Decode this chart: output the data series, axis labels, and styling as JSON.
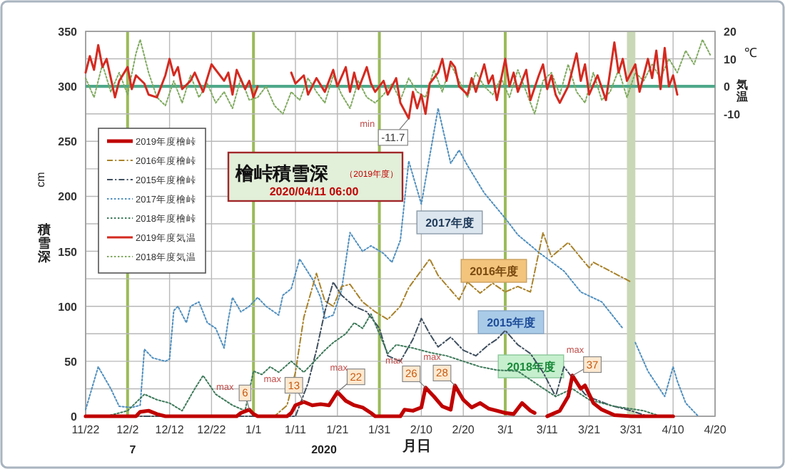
{
  "chart_data": {
    "type": "line",
    "title": "檜峠積雪深",
    "subtitle": "（2019年度）",
    "xlabel": "月日",
    "ylabel": "積雪深",
    "y2label": "気温",
    "xlim": [
      "2019-11-22",
      "2020-04-20"
    ],
    "xticks": [
      {
        "value": "2019-11-22",
        "label": "11/22"
      },
      {
        "value": "2019-12-02",
        "label": "12/2"
      },
      {
        "value": "2019-12-12",
        "label": "12/12"
      },
      {
        "value": "2019-12-22",
        "label": "12/22"
      },
      {
        "value": "2020-01-01",
        "label": "1/1"
      },
      {
        "value": "2020-01-11",
        "label": "1/11"
      },
      {
        "value": "2020-01-21",
        "label": "1/21"
      },
      {
        "value": "2020-01-31",
        "label": "1/31"
      },
      {
        "value": "2020-02-10",
        "label": "2/10"
      },
      {
        "value": "2020-02-20",
        "label": "2/20"
      },
      {
        "value": "2020-03-01",
        "label": "3/1"
      },
      {
        "value": "2020-03-11",
        "label": "3/11"
      },
      {
        "value": "2020-03-21",
        "label": "3/21"
      },
      {
        "value": "2020-03-31",
        "label": "3/31"
      },
      {
        "value": "2020-04-10",
        "label": "4/10"
      },
      {
        "value": "2020-04-20",
        "label": "4/20"
      }
    ],
    "ylim": [
      0,
      350
    ],
    "yticks": [
      0,
      {
        "value": 25,
        "label": null
      },
      50,
      {
        "value": 75,
        "label": null
      },
      100,
      {
        "value": 125,
        "label": null
      },
      150,
      {
        "value": 175,
        "label": null
      },
      200,
      {
        "value": 225,
        "label": null
      },
      250,
      {
        "value": 275,
        "label": null
      },
      300,
      {
        "value": 325,
        "label": null
      },
      350
    ],
    "y2lim": [
      -120,
      20
    ],
    "y2ticks": [
      -10,
      0,
      10,
      20
    ],
    "grid": true,
    "legend": "top left",
    "ref_lines": [
      {
        "axis": "y2",
        "value": 0,
        "color": "#4fa88a"
      }
    ],
    "bands": [
      {
        "axis": "x",
        "from": "2020-03-30",
        "to": "2020-04-01",
        "color": "#c9d8b6"
      }
    ],
    "series": [
      {
        "name": "2019年度檜峠",
        "color": "#c00000",
        "line_style": "solid",
        "x": [
          "2019-11-22",
          "2019-12-04",
          "2019-12-05",
          "2019-12-07",
          "2019-12-09",
          "2019-12-11",
          "2019-12-28",
          "2019-12-29",
          "2019-12-31",
          "2020-01-01",
          "2020-01-02",
          "2020-01-09",
          "2020-01-10",
          "2020-01-11",
          "2020-01-13",
          "2020-01-15",
          "2020-01-17",
          "2020-01-19",
          "2020-01-21",
          "2020-01-23",
          "2020-01-25",
          "2020-01-27",
          "2020-01-29",
          "2020-01-30",
          "2020-02-05",
          "2020-02-06",
          "2020-02-08",
          "2020-02-10",
          "2020-02-11",
          "2020-02-13",
          "2020-02-15",
          "2020-02-17",
          "2020-02-18",
          "2020-02-20",
          "2020-02-22",
          "2020-02-24",
          "2020-02-26",
          "2020-02-28",
          "2020-03-01",
          "2020-03-03",
          "2020-03-05",
          "2020-03-07",
          "2020-03-08",
          "2020-03-09",
          "2020-03-11",
          "2020-03-14",
          "2020-03-16",
          "2020-03-17",
          "2020-03-19",
          "2020-03-20",
          "2020-03-22",
          "2020-03-24",
          "2020-03-27",
          "2020-03-31",
          "2020-04-10"
        ],
        "values": [
          0,
          0,
          4,
          5,
          2,
          0,
          0,
          3,
          6,
          2,
          0,
          0,
          3,
          10,
          13,
          10,
          11,
          10,
          22,
          14,
          10,
          8,
          3,
          0,
          0,
          6,
          5,
          8,
          26,
          18,
          9,
          6,
          28,
          15,
          8,
          12,
          7,
          5,
          3,
          2,
          12,
          5,
          3,
          null,
          0,
          5,
          18,
          37,
          25,
          28,
          12,
          6,
          1,
          0,
          0
        ],
        "value_labels": [
          null,
          null,
          null,
          null,
          null,
          null,
          null,
          null,
          "6",
          null,
          null,
          null,
          null,
          null,
          "13",
          null,
          null,
          null,
          "22",
          null,
          null,
          null,
          null,
          null,
          null,
          null,
          null,
          null,
          "26",
          null,
          null,
          null,
          "28",
          null,
          null,
          null,
          null,
          null,
          null,
          null,
          null,
          null,
          null,
          null,
          null,
          null,
          null,
          "37",
          null,
          null,
          null,
          null,
          null,
          null,
          null
        ]
      },
      {
        "name": "2016年度檜峠",
        "color": "#a9822a",
        "line_style": "dashed",
        "x": [
          "2019-11-22",
          "2020-01-06",
          "2020-01-09",
          "2020-01-11",
          "2020-01-13",
          "2020-01-16",
          "2020-01-18",
          "2020-01-20",
          "2020-01-22",
          "2020-01-24",
          "2020-01-27",
          "2020-01-30",
          "2020-02-02",
          "2020-02-05",
          "2020-02-07",
          "2020-02-12",
          "2020-02-14",
          "2020-02-19",
          "2020-02-21",
          "2020-02-24",
          "2020-02-27",
          "2020-03-01",
          "2020-03-04",
          "2020-03-07",
          "2020-03-10",
          "2020-03-12",
          "2020-03-16",
          "2020-03-21",
          "2020-03-22",
          "2020-03-27",
          "2020-03-31"
        ],
        "values": [
          0,
          0,
          10,
          40,
          90,
          130,
          105,
          100,
          118,
          120,
          104,
          95,
          88,
          100,
          117,
          143,
          128,
          106,
          122,
          112,
          121,
          113,
          118,
          113,
          167,
          145,
          158,
          135,
          140,
          130,
          122
        ]
      },
      {
        "name": "2015年度檜峠",
        "color": "#3f4f5f",
        "line_style": "dashed",
        "x": [
          "2019-11-22",
          "2020-01-11",
          "2020-01-14",
          "2020-01-16",
          "2020-01-18",
          "2020-01-20",
          "2020-01-22",
          "2020-01-25",
          "2020-01-28",
          "2020-01-31",
          "2020-02-02",
          "2020-02-05",
          "2020-02-08",
          "2020-02-10",
          "2020-02-12",
          "2020-02-14",
          "2020-02-17",
          "2020-02-20",
          "2020-02-23",
          "2020-02-26",
          "2020-02-28",
          "2020-03-01",
          "2020-03-04",
          "2020-03-07",
          "2020-03-10",
          "2020-03-13",
          "2020-03-15",
          "2020-03-17",
          "2020-03-20",
          "2020-03-22",
          "2020-03-26",
          "2020-03-31",
          "2020-04-04"
        ],
        "values": [
          0,
          0,
          30,
          60,
          95,
          122,
          110,
          100,
          95,
          80,
          55,
          50,
          70,
          89,
          75,
          63,
          72,
          60,
          55,
          65,
          70,
          78,
          65,
          57,
          40,
          18,
          45,
          35,
          20,
          16,
          10,
          5,
          0
        ]
      },
      {
        "name": "2017年度檜峠",
        "color": "#4f8fbf",
        "line_style": "dotted",
        "x": [
          "2019-11-22",
          "2019-11-25",
          "2019-11-28",
          "2019-11-30",
          "2019-12-03",
          "2019-12-05",
          "2019-12-06",
          "2019-12-08",
          "2019-12-11",
          "2019-12-12",
          "2019-12-13",
          "2019-12-14",
          "2019-12-16",
          "2019-12-17",
          "2019-12-19",
          "2019-12-21",
          "2019-12-23",
          "2019-12-25",
          "2019-12-26",
          "2019-12-27",
          "2019-12-29",
          "2019-12-31",
          "2020-01-02",
          "2020-01-04",
          "2020-01-07",
          "2020-01-08",
          "2020-01-10",
          "2020-01-12",
          "2020-01-15",
          "2020-01-17",
          "2020-01-18",
          "2020-01-20",
          "2020-01-22",
          "2020-01-24",
          "2020-01-27",
          "2020-01-29",
          "2020-02-01",
          "2020-02-03",
          "2020-02-05",
          "2020-02-07",
          "2020-02-10",
          "2020-02-14",
          "2020-02-17",
          "2020-02-19",
          "2020-02-21",
          "2020-02-25",
          "2020-03-01",
          "2020-03-04",
          "2020-03-09",
          "2020-03-15",
          "2020-03-19",
          "2020-03-24",
          "2020-03-29",
          "2020-03-30",
          "2020-04-01",
          "2020-04-04",
          "2020-04-08",
          "2020-04-10",
          "2020-04-11",
          "2020-04-13",
          "2020-04-16"
        ],
        "values": [
          6,
          45,
          25,
          9,
          8,
          10,
          61,
          53,
          50,
          52,
          96,
          100,
          85,
          100,
          104,
          85,
          80,
          62,
          88,
          108,
          95,
          100,
          108,
          100,
          92,
          110,
          116,
          143,
          125,
          108,
          89,
          92,
          115,
          167,
          150,
          155,
          148,
          140,
          160,
          232,
          193,
          280,
          230,
          242,
          228,
          203,
          180,
          165,
          149,
          132,
          113,
          104,
          80,
          null,
          67,
          41,
          18,
          45,
          32,
          12,
          0
        ]
      },
      {
        "name": "2018年度檜峠",
        "color": "#3d7a5a",
        "line_style": "dotted",
        "x": [
          "2019-11-22",
          "2019-11-27",
          "2019-12-02",
          "2019-12-06",
          "2019-12-09",
          "2019-12-12",
          "2019-12-15",
          "2019-12-18",
          "2019-12-20",
          "2019-12-23",
          "2019-12-27",
          "2019-12-30",
          "2020-01-01",
          "2020-01-03",
          "2020-01-05",
          "2020-01-07",
          "2020-01-10",
          "2020-01-13",
          "2020-01-16",
          "2020-01-18",
          "2020-01-20",
          "2020-01-23",
          "2020-01-25",
          "2020-01-27",
          "2020-01-29",
          "2020-01-31",
          "2020-02-02",
          "2020-02-04",
          "2020-02-08",
          "2020-02-12",
          "2020-02-16",
          "2020-02-20",
          "2020-02-24",
          "2020-02-28",
          "2020-03-04",
          "2020-03-09",
          "2020-03-13",
          "2020-03-17",
          "2020-03-21",
          "2020-03-27",
          "2020-04-03",
          "2020-04-07"
        ],
        "values": [
          0,
          0,
          5,
          20,
          15,
          12,
          5,
          25,
          37,
          20,
          10,
          5,
          41,
          38,
          45,
          40,
          50,
          40,
          52,
          60,
          67,
          75,
          85,
          80,
          93,
          75,
          57,
          65,
          62,
          58,
          55,
          50,
          45,
          42,
          41,
          28,
          18,
          25,
          15,
          9,
          5,
          0
        ]
      },
      {
        "name": "2019年度気温",
        "color": "#d42a20",
        "line_style": "solid",
        "axis": "y2",
        "x": [
          "2019-11-22",
          "2019-11-23",
          "2019-11-24",
          "2019-11-25",
          "2019-11-26",
          "2019-11-27",
          "2019-11-28",
          "2019-11-29",
          "2019-11-30",
          "2019-12-02",
          "2019-12-03",
          "2019-12-04",
          "2019-12-06",
          "2019-12-07",
          "2019-12-09",
          "2019-12-11",
          "2019-12-12",
          "2019-12-13",
          "2019-12-14",
          "2019-12-15",
          "2019-12-17",
          "2019-12-18",
          "2019-12-20",
          "2019-12-22",
          "2019-12-23",
          "2019-12-25",
          "2019-12-26",
          "2019-12-27",
          "2019-12-28",
          "2019-12-30",
          "2019-12-31",
          "2020-01-01",
          "2020-01-02",
          "2020-01-03",
          "2020-01-10",
          "2020-01-11",
          "2020-01-13",
          "2020-01-14",
          "2020-01-16",
          "2020-01-18",
          "2020-01-20",
          "2020-01-21",
          "2020-01-23",
          "2020-01-24",
          "2020-01-25",
          "2020-01-26",
          "2020-01-28",
          "2020-01-29",
          "2020-01-30",
          "2020-02-01",
          "2020-02-02",
          "2020-02-04",
          "2020-02-05",
          "2020-02-07",
          "2020-02-08",
          "2020-02-09",
          "2020-02-10",
          "2020-02-11",
          "2020-02-12",
          "2020-02-14",
          "2020-02-15",
          "2020-02-16",
          "2020-02-17",
          "2020-02-18",
          "2020-02-19",
          "2020-02-21",
          "2020-02-22",
          "2020-02-23",
          "2020-02-25",
          "2020-02-26",
          "2020-02-27",
          "2020-02-28",
          "2020-03-01",
          "2020-03-02",
          "2020-03-03",
          "2020-03-04",
          "2020-03-06",
          "2020-03-07",
          "2020-03-09",
          "2020-03-10",
          "2020-03-11",
          "2020-03-12",
          "2020-03-13",
          "2020-03-14",
          "2020-03-16",
          "2020-03-18",
          "2020-03-19",
          "2020-03-20",
          "2020-03-21",
          "2020-03-23",
          "2020-03-25",
          "2020-03-27",
          "2020-03-28",
          "2020-03-29",
          "2020-03-30",
          "2020-04-01",
          "2020-04-02",
          "2020-04-04",
          "2020-04-05",
          "2020-04-06",
          "2020-04-07",
          "2020-04-08",
          "2020-04-09",
          "2020-04-10",
          "2020-04-11"
        ],
        "values": [
          5,
          11,
          6,
          15,
          7,
          10,
          3,
          -4,
          2,
          7,
          -1,
          4,
          1,
          -3,
          -4,
          4,
          10,
          4,
          7,
          -1,
          2,
          5,
          -2,
          8,
          6,
          2,
          5,
          -3,
          6,
          -1,
          2,
          -4,
          0,
          null,
          5,
          1,
          4,
          -3,
          3,
          -2,
          6,
          0,
          7,
          -2,
          5,
          -1,
          7,
          1,
          -2,
          2,
          -3,
          3,
          -6,
          -11.7,
          -2,
          -8,
          -3,
          -10,
          1,
          5,
          10,
          2,
          9,
          7,
          0,
          -3,
          3,
          -2,
          8,
          1,
          4,
          -5,
          10,
          0,
          5,
          -2,
          6,
          -5,
          4,
          8,
          -1,
          4,
          -3,
          -6,
          0,
          12,
          2,
          8,
          -3,
          4,
          -5,
          16,
          5,
          10,
          2,
          8,
          -2,
          10,
          3,
          13,
          -1,
          14,
          0,
          4,
          -3
        ],
        "value_labels": [
          null,
          null,
          null,
          null,
          null,
          null,
          null,
          null,
          null,
          null,
          null,
          null,
          null,
          null,
          null,
          null,
          null,
          null,
          null,
          null,
          null,
          null,
          null,
          null,
          null,
          null,
          null,
          null,
          null,
          null,
          null,
          null,
          null,
          null,
          null,
          null,
          null,
          null,
          null,
          null,
          null,
          null,
          null,
          null,
          null,
          null,
          null,
          null,
          null,
          null,
          null,
          null,
          null,
          "-11.7",
          null,
          null,
          null,
          null,
          null,
          null,
          null,
          null,
          null,
          null,
          null,
          null,
          null,
          null,
          null,
          null,
          null,
          null,
          null,
          null,
          null,
          null,
          null,
          null,
          null,
          null,
          null,
          null,
          null,
          null,
          null,
          null,
          null,
          null,
          null,
          null,
          null,
          null,
          null,
          null,
          null,
          null,
          null,
          null,
          null,
          null,
          null,
          null,
          null,
          null,
          null
        ]
      },
      {
        "name": "2018年度気温",
        "color": "#7faa5f",
        "line_style": "dotted",
        "axis": "y2",
        "x": [
          "2019-11-22",
          "2019-11-24",
          "2019-11-26",
          "2019-11-28",
          "2019-11-30",
          "2019-12-02",
          "2019-12-04",
          "2019-12-05",
          "2019-12-07",
          "2019-12-09",
          "2019-12-11",
          "2019-12-13",
          "2019-12-15",
          "2019-12-17",
          "2019-12-19",
          "2019-12-21",
          "2019-12-23",
          "2019-12-25",
          "2019-12-27",
          "2019-12-29",
          "2019-12-31",
          "2020-01-02",
          "2020-01-04",
          "2020-01-06",
          "2020-01-08",
          "2020-01-10",
          "2020-01-12",
          "2020-01-14",
          "2020-01-16",
          "2020-01-18",
          "2020-01-20",
          "2020-01-22",
          "2020-01-24",
          "2020-01-26",
          "2020-01-28",
          "2020-01-30",
          "2020-02-01",
          "2020-02-03",
          "2020-02-05",
          "2020-02-07",
          "2020-02-09",
          "2020-02-11",
          "2020-02-13",
          "2020-02-15",
          "2020-02-17",
          "2020-02-19",
          "2020-02-21",
          "2020-02-23",
          "2020-02-25",
          "2020-02-27",
          "2020-02-29",
          "2020-03-02",
          "2020-03-04",
          "2020-03-06",
          "2020-03-08",
          "2020-03-10",
          "2020-03-12",
          "2020-03-14",
          "2020-03-16",
          "2020-03-18",
          "2020-03-20",
          "2020-03-22",
          "2020-03-24",
          "2020-03-26",
          "2020-03-28",
          "2020-03-30",
          "2020-04-01",
          "2020-04-03",
          "2020-04-05",
          "2020-04-07",
          "2020-04-09",
          "2020-04-11",
          "2020-04-13",
          "2020-04-15",
          "2020-04-17",
          "2020-04-19"
        ],
        "values": [
          3,
          -4,
          8,
          -2,
          5,
          -3,
          12,
          17,
          5,
          -4,
          -7,
          2,
          -6,
          4,
          -4,
          1,
          -6,
          -2,
          -8,
          3,
          -5,
          -4,
          0,
          -7,
          -10,
          -2,
          -5,
          3,
          -2,
          -6,
          4,
          -3,
          -8,
          2,
          -4,
          -6,
          -3,
          1,
          -5,
          3,
          -2,
          -4,
          6,
          -2,
          8,
          2,
          -4,
          5,
          0,
          -3,
          3,
          -4,
          6,
          -2,
          -10,
          2,
          5,
          -3,
          8,
          -2,
          -6,
          5,
          -5,
          -2,
          6,
          -4,
          5,
          2,
          8,
          3,
          10,
          5,
          13,
          8,
          17,
          11
        ]
      }
    ],
    "annotations": [
      "max",
      "max",
      "max",
      "max",
      "max",
      "max",
      "min",
      "2017年度",
      "2016年度",
      "2015年度",
      "2018年度",
      "2020/04/11 06:00",
      "cm",
      "℃",
      "7",
      "2020"
    ]
  }
}
